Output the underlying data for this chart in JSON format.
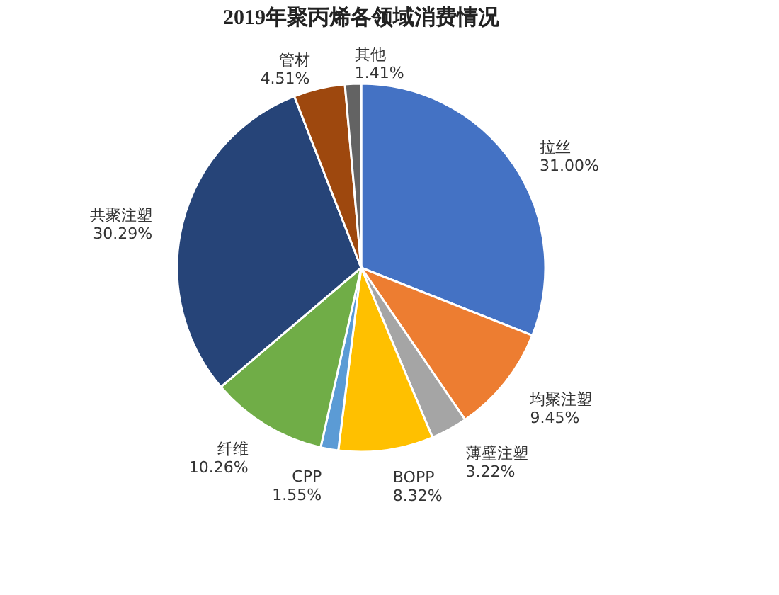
{
  "chart_data": {
    "type": "pie",
    "title": "2019年聚丙烯各领域消费情况",
    "categories": [
      "拉丝",
      "均聚注塑",
      "薄壁注塑",
      "BOPP",
      "CPP",
      "纤维",
      "共聚注塑",
      "管材",
      "其他"
    ],
    "values": [
      31.0,
      9.45,
      3.22,
      8.32,
      1.55,
      10.26,
      30.29,
      4.51,
      1.41
    ],
    "value_labels": [
      "31.00%",
      "9.45%",
      "3.22%",
      "8.32%",
      "1.55%",
      "10.26%",
      "30.29%",
      "4.51%",
      "1.41%"
    ],
    "colors": [
      "#4472c4",
      "#ed7d31",
      "#a5a5a5",
      "#ffc000",
      "#5b9bd5",
      "#70ad47",
      "#264478",
      "#9e480e",
      "#636363"
    ],
    "legend": false
  }
}
